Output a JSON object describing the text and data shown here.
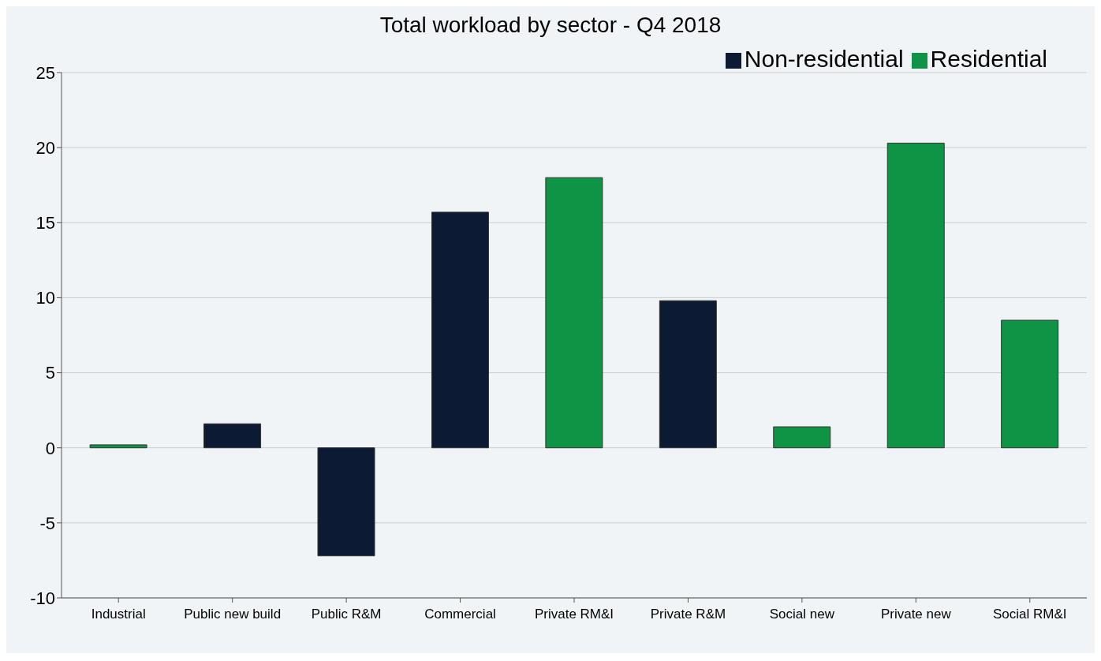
{
  "chart_data": {
    "type": "bar",
    "title": "Total workload by sector - Q4 2018",
    "categories": [
      "Industrial",
      "Public new build",
      "Public R&M",
      "Commercial",
      "Private RM&I",
      "Private R&M",
      "Social new",
      "Private new",
      "Social RM&I"
    ],
    "series": [
      {
        "name": "Residential",
        "color": "#0e9444",
        "values": [
          0.2,
          null,
          null,
          null,
          18.0,
          null,
          1.4,
          20.3,
          8.5
        ]
      },
      {
        "name": "Non-residential",
        "color": "#0d1a33",
        "values": [
          null,
          1.6,
          -7.2,
          15.7,
          null,
          9.8,
          null,
          null,
          null
        ]
      }
    ],
    "stacked": true,
    "ylim": [
      -10,
      25
    ],
    "yticks": [
      -10,
      -5,
      0,
      5,
      10,
      15,
      20,
      25
    ],
    "grid": "y",
    "legend": "top right"
  }
}
